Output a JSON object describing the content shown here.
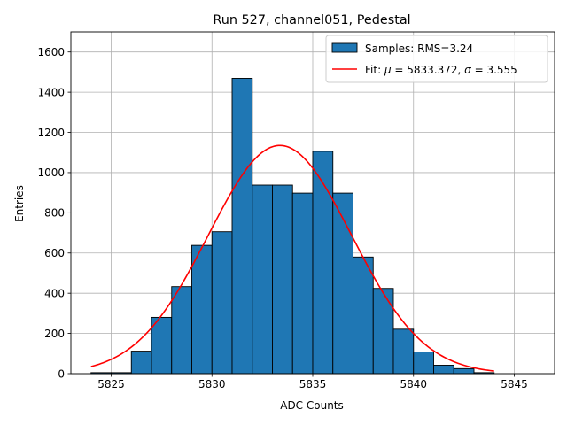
{
  "chart_data": {
    "type": "bar",
    "title": "Run 527, channel051, Pedestal",
    "xlabel": "ADC Counts",
    "ylabel": "Entries",
    "xlim": [
      5823,
      5847
    ],
    "ylim": [
      0,
      1700
    ],
    "grid": true,
    "legend_position": "top-right",
    "x_ticks": [
      5825,
      5830,
      5835,
      5840,
      5845
    ],
    "y_ticks": [
      0,
      200,
      400,
      600,
      800,
      1000,
      1200,
      1400,
      1600
    ],
    "bin_edges": [
      5824,
      5825,
      5826,
      5827,
      5828,
      5829,
      5830,
      5831,
      5832,
      5833,
      5834,
      5835,
      5836,
      5837,
      5838,
      5839,
      5840,
      5841,
      5842,
      5843,
      5844
    ],
    "counts": [
      5,
      5,
      112,
      280,
      433,
      638,
      706,
      1469,
      938,
      938,
      898,
      1106,
      898,
      580,
      424,
      221,
      108,
      42,
      25,
      5
    ],
    "fit": {
      "mu": 5833.372,
      "sigma": 3.555,
      "amplitude": 1135,
      "x_range": [
        5824,
        5844
      ]
    },
    "colors": {
      "bars": "#1f77b4",
      "bar_edge": "#000000",
      "fit": "#ff0000",
      "grid": "#b0b0b0"
    },
    "legend": [
      {
        "label": "Samples: RMS=3.24",
        "kind": "patch"
      },
      {
        "label_prefix": "Fit: ",
        "mu_symbol": "μ",
        "mu_text": " = 5833.372, ",
        "sigma_symbol": "σ",
        "sigma_text": " = 3.555",
        "kind": "line"
      }
    ]
  }
}
